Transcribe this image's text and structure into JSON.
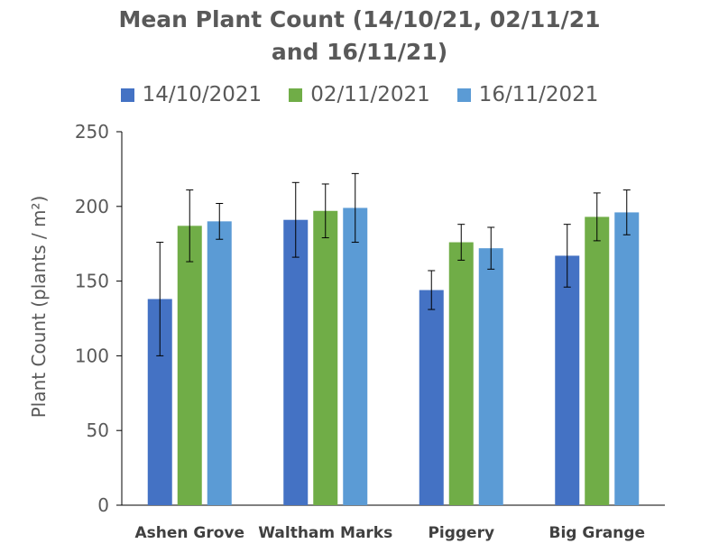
{
  "chart_data": {
    "type": "bar",
    "title": [
      "Mean Plant Count (14/10/21, 02/11/21",
      "and 16/11/21)"
    ],
    "xlabel": "",
    "ylabel": "Plant Count (plants / m²)",
    "ylim": [
      0,
      250
    ],
    "yticks": [
      "0",
      "50",
      "100",
      "150",
      "200",
      "250"
    ],
    "categories": [
      "Ashen Grove",
      "Waltham Marks",
      "Piggery",
      "Big Grange"
    ],
    "series": [
      {
        "name": "14/10/2021",
        "color": "#4472C4",
        "values": [
          138,
          191,
          144,
          167
        ],
        "errors": [
          38,
          25,
          13,
          21
        ]
      },
      {
        "name": "02/11/2021",
        "color": "#70AD47",
        "values": [
          187,
          197,
          176,
          193
        ],
        "errors": [
          24,
          18,
          12,
          16
        ]
      },
      {
        "name": "16/11/2021",
        "color": "#5B9BD5",
        "values": [
          190,
          199,
          172,
          196
        ],
        "errors": [
          12,
          23,
          14,
          15
        ]
      }
    ],
    "grid": false,
    "legend_position": "top"
  }
}
